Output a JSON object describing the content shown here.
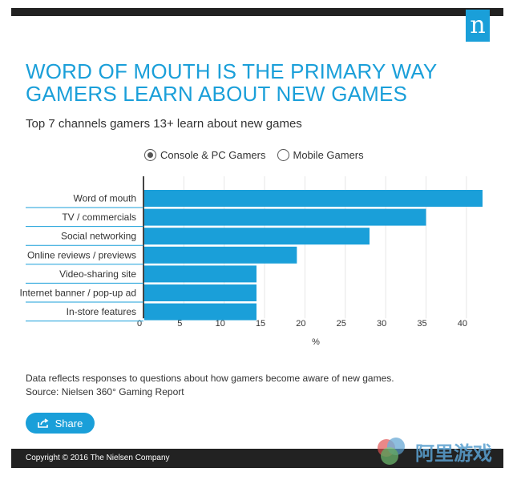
{
  "header": {
    "logo_letter": "n"
  },
  "title": "WORD OF MOUTH IS THE PRIMARY WAY GAMERS LEARN ABOUT NEW GAMES",
  "subtitle": "Top 7 channels gamers 13+ learn about new games",
  "toggle": {
    "options": [
      {
        "label": "Console & PC Gamers",
        "selected": true
      },
      {
        "label": "Mobile Gamers",
        "selected": false
      }
    ]
  },
  "chart_data": {
    "type": "bar",
    "orientation": "horizontal",
    "categories": [
      "Word of mouth",
      "TV / commercials",
      "Social networking",
      "Online reviews / previews",
      "Video-sharing site",
      "Internet banner / pop-up ad",
      "In-store features"
    ],
    "values": [
      42,
      35,
      28,
      19,
      14,
      14,
      14
    ],
    "xlabel": "%",
    "xlim": [
      0,
      42
    ],
    "xticks": [
      0,
      5,
      10,
      15,
      20,
      25,
      30,
      35,
      40
    ],
    "grid": true,
    "bar_color": "#1a9fd9"
  },
  "notes": {
    "line1": "Data reflects responses to questions about how gamers become aware of new games.",
    "line2": "Source: Nielsen 360° Gaming Report"
  },
  "share": {
    "label": "Share",
    "icon": "share-icon"
  },
  "footer": {
    "copyright": "Copyright © 2016 The Nielsen Company"
  },
  "watermark": {
    "text": "阿里游戏"
  },
  "colors": {
    "accent": "#1a9fd9",
    "bar": "#1a9fd9",
    "dark": "#222222"
  }
}
